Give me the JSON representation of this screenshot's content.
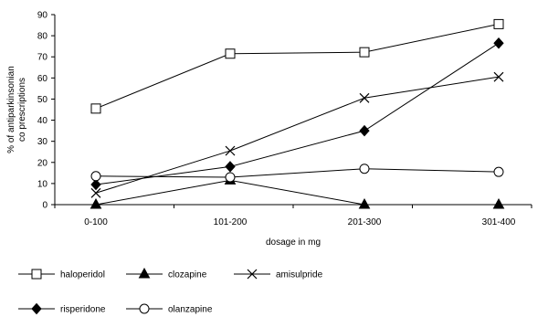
{
  "chart_data": {
    "type": "line",
    "categories": [
      "0-100",
      "101-200",
      "201-300",
      "301-400"
    ],
    "xlabel": "dosage in mg",
    "ylabel_lines": [
      "% of antiparkinsonian",
      "co prescriptions"
    ],
    "ylim": [
      0,
      90
    ],
    "yticks": [
      0,
      10,
      20,
      30,
      40,
      50,
      60,
      70,
      80,
      90
    ],
    "grid": false,
    "legend_position": "bottom",
    "series": [
      {
        "name": "haloperidol",
        "marker": "open-square",
        "values": [
          45.5,
          71.5,
          72.2,
          85.5
        ]
      },
      {
        "name": "clozapine",
        "marker": "filled-triangle",
        "values": [
          0,
          11.5,
          0,
          0
        ]
      },
      {
        "name": "amisulpride",
        "marker": "x",
        "values": [
          5.5,
          25.5,
          50.5,
          60.5
        ]
      },
      {
        "name": "risperidone",
        "marker": "filled-diamond",
        "values": [
          9.5,
          18,
          35,
          76.5
        ]
      },
      {
        "name": "olanzapine",
        "marker": "open-circle",
        "values": [
          13.5,
          13,
          17,
          15.5
        ]
      }
    ]
  }
}
